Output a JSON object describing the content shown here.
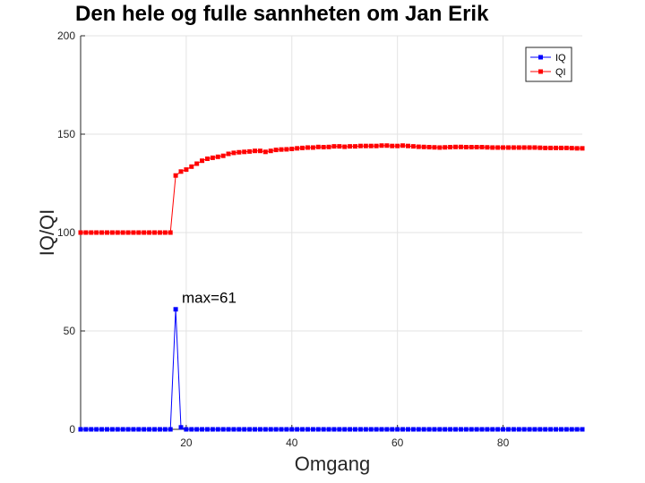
{
  "chart_data": {
    "type": "line",
    "title": "Den hele og fulle sannheten om Jan Erik",
    "xlabel": "Omgang",
    "ylabel": "IQ/QI",
    "xlim": [
      0,
      95
    ],
    "ylim": [
      0,
      200
    ],
    "xticks": [
      20,
      40,
      60,
      80
    ],
    "yticks": [
      0,
      50,
      100,
      150,
      200
    ],
    "grid": true,
    "legend_location": "top-right",
    "annotations": [
      {
        "text": "max=61",
        "x": 19,
        "y": 67
      }
    ],
    "series": [
      {
        "name": "IQ",
        "color": "#0000ff",
        "marker": "square",
        "x": [
          0,
          1,
          2,
          3,
          4,
          5,
          6,
          7,
          8,
          9,
          10,
          11,
          12,
          13,
          14,
          15,
          16,
          17,
          18,
          19,
          20,
          21,
          22,
          23,
          24,
          25,
          26,
          27,
          28,
          29,
          30,
          31,
          32,
          33,
          34,
          35,
          36,
          37,
          38,
          39,
          40,
          41,
          42,
          43,
          44,
          45,
          46,
          47,
          48,
          49,
          50,
          51,
          52,
          53,
          54,
          55,
          56,
          57,
          58,
          59,
          60,
          61,
          62,
          63,
          64,
          65,
          66,
          67,
          68,
          69,
          70,
          71,
          72,
          73,
          74,
          75,
          76,
          77,
          78,
          79,
          80,
          81,
          82,
          83,
          84,
          85,
          86,
          87,
          88,
          89,
          90,
          91,
          92,
          93,
          94,
          95
        ],
        "y": [
          0,
          0,
          0,
          0,
          0,
          0,
          0,
          0,
          0,
          0,
          0,
          0,
          0,
          0,
          0,
          0,
          0,
          0,
          61,
          1,
          0,
          0,
          0,
          0,
          0,
          0,
          0,
          0,
          0,
          0,
          0,
          0,
          0,
          0,
          0,
          0,
          0,
          0,
          0,
          0,
          0,
          0,
          0,
          0,
          0,
          0,
          0,
          0,
          0,
          0,
          0,
          0,
          0,
          0,
          0,
          0,
          0,
          0,
          0,
          0,
          0,
          0,
          0,
          0,
          0,
          0,
          0,
          0,
          0,
          0,
          0,
          0,
          0,
          0,
          0,
          0,
          0,
          0,
          0,
          0,
          0,
          0,
          0,
          0,
          0,
          0,
          0,
          0,
          0,
          0,
          0,
          0,
          0,
          0,
          0,
          0
        ]
      },
      {
        "name": "QI",
        "color": "#ff0000",
        "marker": "square",
        "x": [
          0,
          1,
          2,
          3,
          4,
          5,
          6,
          7,
          8,
          9,
          10,
          11,
          12,
          13,
          14,
          15,
          16,
          17,
          18,
          19,
          20,
          21,
          22,
          23,
          24,
          25,
          26,
          27,
          28,
          29,
          30,
          31,
          32,
          33,
          34,
          35,
          36,
          37,
          38,
          39,
          40,
          41,
          42,
          43,
          44,
          45,
          46,
          47,
          48,
          49,
          50,
          51,
          52,
          53,
          54,
          55,
          56,
          57,
          58,
          59,
          60,
          61,
          62,
          63,
          64,
          65,
          66,
          67,
          68,
          69,
          70,
          71,
          72,
          73,
          74,
          75,
          76,
          77,
          78,
          79,
          80,
          81,
          82,
          83,
          84,
          85,
          86,
          87,
          88,
          89,
          90,
          91,
          92,
          93,
          94,
          95
        ],
        "y": [
          100,
          100,
          100,
          100,
          100,
          100,
          100,
          100,
          100,
          100,
          100,
          100,
          100,
          100,
          100,
          100,
          100,
          100,
          129,
          131,
          132,
          133.5,
          135,
          136.5,
          137.5,
          138,
          138.5,
          139,
          140,
          140.5,
          140.8,
          141,
          141.2,
          141.5,
          141.5,
          141,
          141.5,
          142,
          142.2,
          142.3,
          142.5,
          142.8,
          143,
          143.2,
          143.2,
          143.5,
          143.4,
          143.5,
          143.8,
          143.8,
          143.6,
          143.8,
          143.8,
          144,
          144,
          144,
          144,
          144.2,
          144.2,
          144,
          144,
          144.2,
          144,
          143.8,
          143.6,
          143.5,
          143.4,
          143.3,
          143.2,
          143.3,
          143.4,
          143.5,
          143.5,
          143.4,
          143.4,
          143.4,
          143.4,
          143.3,
          143.2,
          143.2,
          143.2,
          143.2,
          143.2,
          143.2,
          143.2,
          143.2,
          143.2,
          143.1,
          143,
          143,
          143,
          143,
          143,
          142.9,
          142.8,
          142.8
        ]
      }
    ]
  }
}
